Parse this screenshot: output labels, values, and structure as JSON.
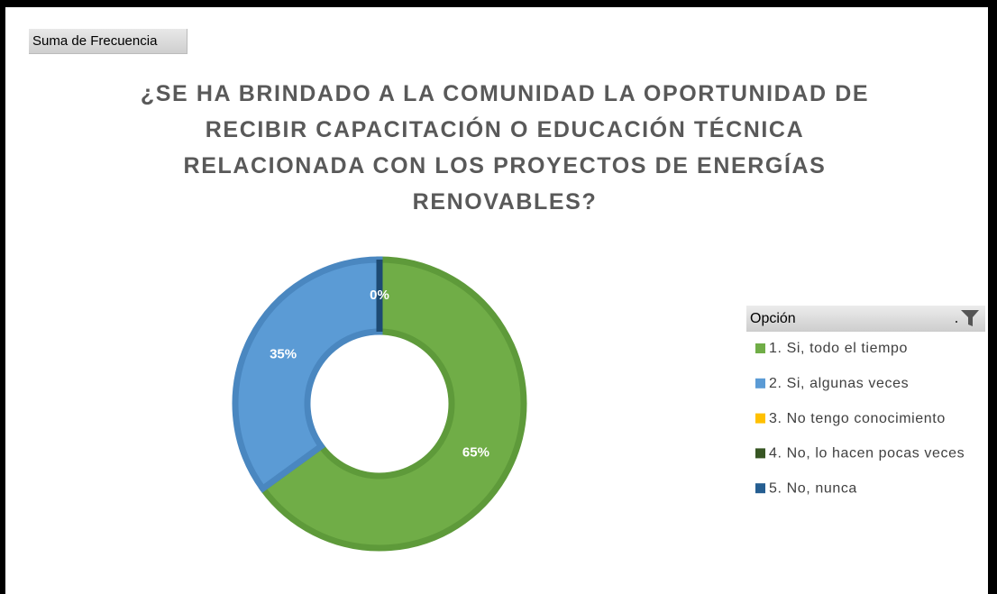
{
  "chart_data": {
    "type": "donut",
    "field_button": "Suma de Frecuencia",
    "title": "¿SE HA BRINDADO A LA COMUNIDAD LA OPORTUNIDAD DE RECIBIR CAPACITACIÓN O EDUCACIÓN TÉCNICA RELACIONADA CON LOS PROYECTOS DE ENERGÍAS RENOVABLES?",
    "legend_title": "Opción",
    "legend_position": "right",
    "categories": [
      "1. Si, todo el tiempo",
      "2. Si, algunas veces",
      "3. No tengo conocimiento",
      "4. No, lo hacen pocas veces",
      "5. No, nunca"
    ],
    "values": [
      65,
      35,
      0,
      0,
      0
    ],
    "value_labels": [
      "65%",
      "35%",
      "0%",
      null,
      null
    ],
    "colors": [
      "#70ad47",
      "#5b9bd5",
      "#ffc000",
      "#375623",
      "#255e91"
    ],
    "edge_colors": [
      "#5e9a3a",
      "#4a87c0",
      "#d9a300",
      "#2b441b",
      "#1d4a73"
    ]
  }
}
